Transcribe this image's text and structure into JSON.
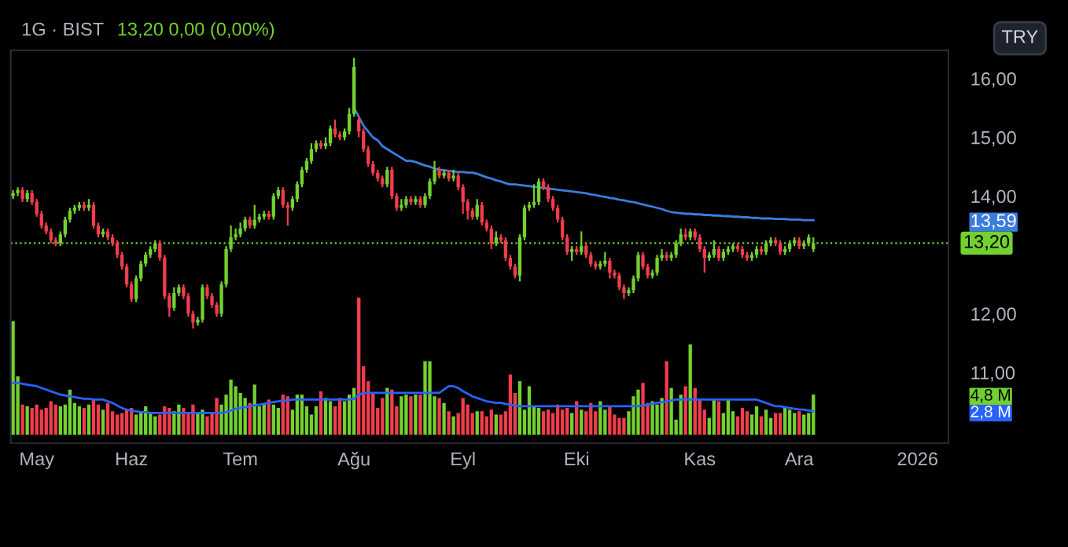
{
  "chart_data": {
    "type": "candlestick",
    "title": "1G · BIST",
    "subtitle": "13,20 0,00 (0,00%)",
    "annotations": [
      "TRY"
    ],
    "categories": [
      null,
      null,
      null,
      null,
      null,
      "May",
      null,
      null,
      null,
      null,
      null,
      null,
      null,
      null,
      null,
      null,
      null,
      null,
      null,
      null,
      null,
      null,
      null,
      null,
      null,
      "Haz",
      null,
      null,
      null,
      null,
      null,
      null,
      null,
      null,
      null,
      null,
      null,
      null,
      null,
      null,
      null,
      null,
      null,
      null,
      null,
      null,
      null,
      null,
      "Tem",
      null,
      null,
      null,
      null,
      null,
      null,
      null,
      null,
      null,
      null,
      null,
      null,
      null,
      null,
      null,
      null,
      null,
      null,
      null,
      null,
      null,
      null,
      null,
      "Ağu",
      null,
      null,
      null,
      null,
      null,
      null,
      null,
      null,
      null,
      null,
      null,
      null,
      null,
      null,
      null,
      null,
      null,
      null,
      null,
      null,
      null,
      null,
      "Eyl",
      null,
      null,
      null,
      null,
      null,
      null,
      null,
      null,
      null,
      null,
      null,
      null,
      null,
      null,
      null,
      null,
      null,
      null,
      null,
      null,
      null,
      null,
      null,
      "Eki",
      null,
      null,
      null,
      null,
      null,
      null,
      null,
      null,
      null,
      null,
      null,
      null,
      null,
      null,
      null,
      null,
      null,
      null,
      null,
      null,
      null,
      null,
      null,
      null,
      null,
      "Kas",
      null,
      null,
      null,
      null,
      null,
      null,
      null,
      null,
      null,
      null,
      null,
      null,
      null,
      null,
      null,
      null,
      null,
      null,
      null,
      null,
      "Ara",
      null,
      null,
      null,
      null,
      null,
      null,
      null,
      null,
      null,
      null,
      null,
      null,
      null,
      null,
      null,
      null,
      null,
      null,
      null,
      null,
      null,
      null,
      null,
      null,
      "2026",
      null,
      null,
      null,
      null,
      null,
      null
    ],
    "ohlc": [
      [
        14.0,
        14.1,
        13.95,
        14.05
      ],
      [
        14.05,
        14.15,
        14.0,
        14.1
      ],
      [
        14.1,
        14.15,
        13.9,
        13.95
      ],
      [
        13.95,
        14.1,
        13.9,
        14.05
      ],
      [
        14.05,
        14.1,
        13.85,
        13.9
      ],
      [
        13.9,
        13.95,
        13.65,
        13.7
      ],
      [
        13.7,
        13.75,
        13.45,
        13.5
      ],
      [
        13.5,
        13.55,
        13.35,
        13.4
      ],
      [
        13.4,
        13.45,
        13.2,
        13.25
      ],
      [
        13.25,
        13.3,
        13.15,
        13.2
      ],
      [
        13.2,
        13.4,
        13.15,
        13.35
      ],
      [
        13.35,
        13.65,
        13.3,
        13.6
      ],
      [
        13.6,
        13.8,
        13.55,
        13.75
      ],
      [
        13.75,
        13.85,
        13.7,
        13.8
      ],
      [
        13.8,
        13.9,
        13.75,
        13.85
      ],
      [
        13.85,
        13.9,
        13.75,
        13.8
      ],
      [
        13.8,
        13.95,
        13.75,
        13.85
      ],
      [
        13.85,
        13.9,
        13.45,
        13.5
      ],
      [
        13.5,
        13.55,
        13.3,
        13.35
      ],
      [
        13.35,
        13.45,
        13.3,
        13.4
      ],
      [
        13.4,
        13.45,
        13.25,
        13.3
      ],
      [
        13.3,
        13.35,
        13.15,
        13.2
      ],
      [
        13.2,
        13.25,
        12.95,
        13.0
      ],
      [
        13.0,
        13.05,
        12.75,
        12.8
      ],
      [
        12.8,
        12.85,
        12.45,
        12.5
      ],
      [
        12.5,
        12.55,
        12.2,
        12.25
      ],
      [
        12.25,
        12.65,
        12.2,
        12.6
      ],
      [
        12.6,
        12.9,
        12.55,
        12.85
      ],
      [
        12.85,
        13.05,
        12.8,
        13.0
      ],
      [
        13.0,
        13.15,
        12.95,
        13.1
      ],
      [
        13.1,
        13.25,
        13.05,
        13.2
      ],
      [
        13.2,
        13.25,
        12.9,
        12.95
      ],
      [
        12.95,
        13.0,
        12.25,
        12.3
      ],
      [
        12.3,
        12.35,
        11.95,
        12.1
      ],
      [
        12.1,
        12.45,
        12.05,
        12.35
      ],
      [
        12.35,
        12.5,
        12.3,
        12.45
      ],
      [
        12.45,
        12.5,
        12.25,
        12.3
      ],
      [
        12.3,
        12.35,
        11.95,
        12.0
      ],
      [
        12.0,
        12.05,
        11.75,
        11.85
      ],
      [
        11.85,
        11.95,
        11.8,
        11.9
      ],
      [
        11.9,
        12.5,
        11.85,
        12.45
      ],
      [
        12.45,
        12.5,
        12.25,
        12.3
      ],
      [
        12.3,
        12.35,
        12.1,
        12.15
      ],
      [
        12.15,
        12.2,
        11.95,
        12.0
      ],
      [
        12.0,
        12.55,
        11.95,
        12.5
      ],
      [
        12.5,
        13.15,
        12.45,
        13.1
      ],
      [
        13.1,
        13.5,
        13.05,
        13.3
      ],
      [
        13.3,
        13.45,
        13.25,
        13.35
      ],
      [
        13.35,
        13.55,
        13.3,
        13.45
      ],
      [
        13.45,
        13.65,
        13.4,
        13.6
      ],
      [
        13.6,
        13.65,
        13.45,
        13.5
      ],
      [
        13.5,
        13.85,
        13.45,
        13.6
      ],
      [
        13.6,
        13.7,
        13.55,
        13.65
      ],
      [
        13.65,
        13.75,
        13.6,
        13.7
      ],
      [
        13.7,
        13.75,
        13.6,
        13.65
      ],
      [
        13.65,
        14.05,
        13.6,
        14.0
      ],
      [
        14.0,
        14.15,
        13.95,
        14.1
      ],
      [
        14.1,
        14.15,
        13.8,
        13.85
      ],
      [
        13.85,
        13.9,
        13.5,
        13.8
      ],
      [
        13.8,
        14.0,
        13.75,
        13.95
      ],
      [
        13.95,
        14.25,
        13.9,
        14.2
      ],
      [
        14.2,
        14.5,
        14.15,
        14.45
      ],
      [
        14.45,
        14.65,
        14.4,
        14.6
      ],
      [
        14.6,
        14.9,
        14.55,
        14.8
      ],
      [
        14.8,
        14.95,
        14.75,
        14.9
      ],
      [
        14.9,
        14.95,
        14.8,
        14.85
      ],
      [
        14.85,
        15.0,
        14.8,
        14.9
      ],
      [
        14.9,
        15.2,
        14.85,
        15.15
      ],
      [
        15.15,
        15.3,
        15.0,
        15.05
      ],
      [
        15.05,
        15.1,
        14.95,
        15.0
      ],
      [
        15.0,
        15.15,
        14.95,
        15.1
      ],
      [
        15.1,
        15.5,
        15.05,
        15.4
      ],
      [
        15.4,
        16.35,
        15.35,
        16.2
      ],
      [
        15.3,
        15.35,
        15.0,
        15.1
      ],
      [
        15.1,
        15.15,
        14.75,
        14.8
      ],
      [
        14.8,
        14.85,
        14.5,
        14.55
      ],
      [
        14.55,
        14.6,
        14.35,
        14.4
      ],
      [
        14.4,
        14.45,
        14.25,
        14.3
      ],
      [
        14.3,
        14.35,
        14.15,
        14.2
      ],
      [
        14.2,
        14.5,
        14.15,
        14.45
      ],
      [
        14.45,
        14.5,
        13.95,
        14.0
      ],
      [
        14.0,
        14.05,
        13.75,
        13.8
      ],
      [
        13.8,
        13.95,
        13.75,
        13.85
      ],
      [
        13.85,
        14.0,
        13.8,
        13.95
      ],
      [
        13.95,
        14.0,
        13.85,
        13.9
      ],
      [
        13.9,
        14.0,
        13.85,
        13.95
      ],
      [
        13.95,
        14.0,
        13.8,
        13.85
      ],
      [
        13.85,
        14.05,
        13.8,
        14.0
      ],
      [
        14.0,
        14.3,
        13.95,
        14.25
      ],
      [
        14.25,
        14.6,
        14.2,
        14.45
      ],
      [
        14.45,
        14.5,
        14.3,
        14.35
      ],
      [
        14.35,
        14.45,
        14.3,
        14.4
      ],
      [
        14.4,
        14.45,
        14.25,
        14.3
      ],
      [
        14.3,
        14.45,
        14.25,
        14.35
      ],
      [
        14.35,
        14.4,
        14.1,
        14.15
      ],
      [
        14.15,
        14.2,
        13.7,
        13.9
      ],
      [
        13.9,
        13.95,
        13.6,
        13.75
      ],
      [
        13.75,
        13.8,
        13.6,
        13.65
      ],
      [
        13.65,
        13.95,
        13.6,
        13.85
      ],
      [
        13.85,
        13.9,
        13.5,
        13.55
      ],
      [
        13.55,
        13.6,
        13.4,
        13.45
      ],
      [
        13.45,
        13.5,
        13.1,
        13.2
      ],
      [
        13.2,
        13.4,
        13.15,
        13.3
      ],
      [
        13.3,
        13.35,
        13.2,
        13.25
      ],
      [
        13.25,
        13.3,
        12.9,
        12.95
      ],
      [
        12.95,
        13.0,
        12.75,
        12.8
      ],
      [
        12.8,
        12.85,
        12.6,
        12.65
      ],
      [
        12.65,
        13.35,
        12.55,
        13.3
      ],
      [
        13.3,
        13.85,
        13.25,
        13.8
      ],
      [
        13.8,
        13.9,
        13.75,
        13.85
      ],
      [
        13.85,
        14.2,
        13.8,
        13.9
      ],
      [
        13.9,
        14.3,
        13.85,
        14.25
      ],
      [
        14.25,
        14.3,
        14.1,
        14.15
      ],
      [
        14.15,
        14.2,
        13.9,
        13.95
      ],
      [
        13.95,
        14.0,
        13.75,
        13.8
      ],
      [
        13.8,
        13.85,
        13.55,
        13.6
      ],
      [
        13.6,
        13.65,
        13.25,
        13.3
      ],
      [
        13.3,
        13.35,
        13.0,
        13.05
      ],
      [
        13.05,
        13.15,
        12.9,
        13.1
      ],
      [
        13.1,
        13.15,
        13.0,
        13.05
      ],
      [
        13.05,
        13.4,
        13.0,
        13.15
      ],
      [
        13.15,
        13.2,
        12.95,
        13.0
      ],
      [
        13.0,
        13.05,
        12.8,
        12.85
      ],
      [
        12.85,
        12.9,
        12.75,
        12.8
      ],
      [
        12.8,
        12.9,
        12.75,
        12.85
      ],
      [
        12.85,
        13.05,
        12.8,
        12.9
      ],
      [
        12.9,
        12.95,
        12.6,
        12.7
      ],
      [
        12.7,
        12.75,
        12.6,
        12.65
      ],
      [
        12.65,
        12.7,
        12.4,
        12.45
      ],
      [
        12.45,
        12.5,
        12.25,
        12.35
      ],
      [
        12.35,
        12.45,
        12.3,
        12.4
      ],
      [
        12.4,
        12.65,
        12.35,
        12.6
      ],
      [
        12.6,
        13.05,
        12.55,
        13.0
      ],
      [
        13.0,
        13.05,
        12.75,
        12.8
      ],
      [
        12.8,
        12.85,
        12.6,
        12.65
      ],
      [
        12.65,
        12.75,
        12.6,
        12.7
      ],
      [
        12.7,
        13.0,
        12.65,
        12.95
      ],
      [
        12.95,
        13.1,
        12.9,
        13.0
      ],
      [
        13.0,
        13.05,
        12.9,
        12.95
      ],
      [
        12.95,
        13.05,
        12.9,
        13.0
      ],
      [
        13.0,
        13.25,
        12.95,
        13.2
      ],
      [
        13.2,
        13.45,
        13.15,
        13.35
      ],
      [
        13.35,
        13.45,
        13.25,
        13.3
      ],
      [
        13.3,
        13.45,
        13.25,
        13.4
      ],
      [
        13.4,
        13.45,
        13.25,
        13.3
      ],
      [
        13.3,
        13.35,
        13.05,
        13.1
      ],
      [
        13.1,
        13.15,
        12.7,
        12.95
      ],
      [
        12.95,
        13.05,
        12.9,
        13.0
      ],
      [
        13.0,
        13.25,
        12.95,
        13.1
      ],
      [
        13.1,
        13.15,
        12.9,
        12.95
      ],
      [
        12.95,
        13.1,
        12.9,
        13.05
      ],
      [
        13.05,
        13.15,
        13.0,
        13.1
      ],
      [
        13.1,
        13.2,
        13.05,
        13.15
      ],
      [
        13.15,
        13.2,
        13.05,
        13.1
      ],
      [
        13.1,
        13.15,
        12.95,
        13.0
      ],
      [
        13.0,
        13.05,
        12.9,
        12.95
      ],
      [
        12.95,
        13.05,
        12.9,
        13.0
      ],
      [
        13.0,
        13.15,
        12.95,
        13.1
      ],
      [
        13.1,
        13.15,
        13.0,
        13.05
      ],
      [
        13.05,
        13.25,
        13.0,
        13.2
      ],
      [
        13.2,
        13.3,
        13.15,
        13.25
      ],
      [
        13.25,
        13.3,
        13.15,
        13.2
      ],
      [
        13.2,
        13.25,
        13.0,
        13.05
      ],
      [
        13.05,
        13.15,
        13.0,
        13.1
      ],
      [
        13.1,
        13.25,
        13.05,
        13.2
      ],
      [
        13.2,
        13.3,
        13.15,
        13.25
      ],
      [
        13.25,
        13.3,
        13.1,
        13.15
      ],
      [
        13.15,
        13.25,
        13.1,
        13.2
      ],
      [
        13.2,
        13.35,
        13.15,
        13.3
      ],
      [
        13.1,
        13.3,
        13.05,
        13.2
      ],
      null,
      null,
      null,
      null,
      null,
      null,
      null,
      null,
      null,
      null,
      null,
      null,
      null,
      null,
      null,
      null,
      null,
      null,
      null,
      null,
      null,
      null,
      null,
      null,
      null,
      null,
      null,
      null
    ],
    "colors": [
      "#73d12f",
      "#73d12f",
      "#f23c4d",
      "#73d12f",
      "#f23c4d",
      "#f23c4d",
      "#f23c4d",
      "#f23c4d",
      "#f23c4d",
      "#f23c4d",
      "#73d12f",
      "#73d12f",
      "#73d12f",
      "#73d12f",
      "#73d12f",
      "#f23c4d",
      "#73d12f",
      "#f23c4d",
      "#f23c4d",
      "#73d12f",
      "#f23c4d",
      "#f23c4d",
      "#f23c4d",
      "#f23c4d",
      "#f23c4d",
      "#f23c4d",
      "#73d12f",
      "#73d12f",
      "#73d12f",
      "#73d12f",
      "#73d12f",
      "#f23c4d",
      "#f23c4d",
      "#f23c4d",
      "#73d12f",
      "#73d12f",
      "#f23c4d",
      "#f23c4d",
      "#f23c4d",
      "#73d12f",
      "#73d12f",
      "#f23c4d",
      "#f23c4d",
      "#f23c4d",
      "#73d12f",
      "#73d12f",
      "#73d12f",
      "#73d12f",
      "#73d12f",
      "#73d12f",
      "#f23c4d",
      "#73d12f",
      "#73d12f",
      "#73d12f",
      "#f23c4d",
      "#73d12f",
      "#73d12f",
      "#f23c4d",
      "#f23c4d",
      "#73d12f",
      "#73d12f",
      "#73d12f",
      "#73d12f",
      "#73d12f",
      "#73d12f",
      "#f23c4d",
      "#73d12f",
      "#73d12f",
      "#f23c4d",
      "#f23c4d",
      "#73d12f",
      "#73d12f",
      "#73d12f",
      "#f23c4d",
      "#f23c4d",
      "#f23c4d",
      "#f23c4d",
      "#f23c4d",
      "#f23c4d",
      "#73d12f",
      "#f23c4d",
      "#f23c4d",
      "#73d12f",
      "#73d12f",
      "#f23c4d",
      "#73d12f",
      "#f23c4d",
      "#73d12f",
      "#73d12f",
      "#73d12f",
      "#f23c4d",
      "#73d12f",
      "#f23c4d",
      "#73d12f",
      "#f23c4d",
      "#f23c4d",
      "#f23c4d",
      "#f23c4d",
      "#73d12f",
      "#f23c4d",
      "#f23c4d",
      "#f23c4d",
      "#73d12f",
      "#f23c4d",
      "#f23c4d",
      "#f23c4d",
      "#f23c4d",
      "#73d12f",
      "#73d12f",
      "#73d12f",
      "#73d12f",
      "#73d12f",
      "#f23c4d",
      "#f23c4d",
      "#f23c4d",
      "#f23c4d",
      "#f23c4d",
      "#f23c4d",
      "#73d12f",
      "#f23c4d",
      "#73d12f",
      "#f23c4d",
      "#f23c4d",
      "#f23c4d",
      "#73d12f",
      "#73d12f",
      "#f23c4d",
      "#f23c4d",
      "#f23c4d",
      "#f23c4d",
      "#73d12f",
      "#73d12f",
      "#73d12f",
      "#f23c4d",
      "#f23c4d",
      "#73d12f",
      "#73d12f",
      "#73d12f",
      "#f23c4d",
      "#73d12f",
      "#73d12f",
      "#73d12f",
      "#f23c4d",
      "#73d12f",
      "#f23c4d",
      "#f23c4d",
      "#f23c4d",
      "#73d12f",
      "#73d12f",
      "#f23c4d",
      "#73d12f",
      "#73d12f",
      "#73d12f",
      "#f23c4d",
      "#f23c4d",
      "#f23c4d",
      "#73d12f",
      "#73d12f",
      "#f23c4d",
      "#73d12f",
      "#73d12f",
      "#f23c4d",
      "#f23c4d",
      "#73d12f",
      "#73d12f",
      "#73d12f",
      "#f23c4d",
      "#73d12f",
      "#73d12f",
      "#73d12f",
      null,
      null,
      null,
      null,
      null,
      null,
      null,
      null,
      null,
      null,
      null,
      null,
      null,
      null,
      null,
      null,
      null,
      null,
      null,
      null,
      null,
      null,
      null,
      null,
      null,
      null,
      null,
      null
    ],
    "series": [
      {
        "type": "bar",
        "axis": "y2",
        "colors": [
          "#73d12f",
          "#73d12f",
          "#f23c4d",
          "#73d12f",
          "#f23c4d",
          "#f23c4d",
          "#f23c4d",
          "#f23c4d",
          "#f23c4d",
          "#f23c4d",
          "#73d12f",
          "#73d12f",
          "#73d12f",
          "#73d12f",
          "#73d12f",
          "#f23c4d",
          "#73d12f",
          "#f23c4d",
          "#f23c4d",
          "#73d12f",
          "#f23c4d",
          "#f23c4d",
          "#f23c4d",
          "#f23c4d",
          "#f23c4d",
          "#f23c4d",
          "#73d12f",
          "#73d12f",
          "#73d12f",
          "#73d12f",
          "#73d12f",
          "#f23c4d",
          "#f23c4d",
          "#f23c4d",
          "#73d12f",
          "#73d12f",
          "#f23c4d",
          "#f23c4d",
          "#f23c4d",
          "#73d12f",
          "#73d12f",
          "#f23c4d",
          "#f23c4d",
          "#f23c4d",
          "#73d12f",
          "#73d12f",
          "#73d12f",
          "#73d12f",
          "#73d12f",
          "#73d12f",
          "#f23c4d",
          "#73d12f",
          "#73d12f",
          "#73d12f",
          "#f23c4d",
          "#73d12f",
          "#73d12f",
          "#f23c4d",
          "#f23c4d",
          "#73d12f",
          "#73d12f",
          "#73d12f",
          "#73d12f",
          "#73d12f",
          "#73d12f",
          "#f23c4d",
          "#73d12f",
          "#73d12f",
          "#f23c4d",
          "#f23c4d",
          "#73d12f",
          "#73d12f",
          "#73d12f",
          "#f23c4d",
          "#f23c4d",
          "#f23c4d",
          "#f23c4d",
          "#f23c4d",
          "#f23c4d",
          "#73d12f",
          "#f23c4d",
          "#f23c4d",
          "#73d12f",
          "#73d12f",
          "#f23c4d",
          "#73d12f",
          "#f23c4d",
          "#73d12f",
          "#73d12f",
          "#73d12f",
          "#f23c4d",
          "#73d12f",
          "#f23c4d",
          "#73d12f",
          "#f23c4d",
          "#f23c4d",
          "#f23c4d",
          "#f23c4d",
          "#73d12f",
          "#f23c4d",
          "#f23c4d",
          "#f23c4d",
          "#73d12f",
          "#f23c4d",
          "#f23c4d",
          "#f23c4d",
          "#f23c4d",
          "#73d12f",
          "#73d12f",
          "#73d12f",
          "#73d12f",
          "#73d12f",
          "#f23c4d",
          "#f23c4d",
          "#f23c4d",
          "#f23c4d",
          "#f23c4d",
          "#f23c4d",
          "#73d12f",
          "#f23c4d",
          "#73d12f",
          "#f23c4d",
          "#f23c4d",
          "#f23c4d",
          "#73d12f",
          "#73d12f",
          "#f23c4d",
          "#f23c4d",
          "#f23c4d",
          "#f23c4d",
          "#73d12f",
          "#73d12f",
          "#73d12f",
          "#f23c4d",
          "#f23c4d",
          "#73d12f",
          "#73d12f",
          "#73d12f",
          "#f23c4d",
          "#73d12f",
          "#73d12f",
          "#73d12f",
          "#f23c4d",
          "#73d12f",
          "#f23c4d",
          "#f23c4d",
          "#f23c4d",
          "#73d12f",
          "#73d12f",
          "#f23c4d",
          "#73d12f",
          "#73d12f",
          "#73d12f",
          "#f23c4d",
          "#f23c4d",
          "#f23c4d",
          "#73d12f",
          "#73d12f",
          "#f23c4d",
          "#73d12f",
          "#73d12f",
          "#f23c4d",
          "#f23c4d",
          "#73d12f",
          "#73d12f",
          "#73d12f",
          "#f23c4d",
          "#73d12f",
          "#73d12f",
          "#73d12f",
          null,
          null,
          null,
          null,
          null,
          null,
          null,
          null,
          null,
          null,
          null,
          null,
          null,
          null,
          null,
          null,
          null,
          null,
          null,
          null,
          null,
          null,
          null,
          null,
          null,
          null,
          null,
          null
        ],
        "values": [
          13.6,
          7.0,
          3.6,
          3.4,
          3.2,
          3.6,
          3.0,
          3.2,
          4.0,
          3.6,
          3.4,
          3.6,
          5.4,
          3.8,
          3.4,
          3.2,
          3.6,
          4.2,
          3.6,
          3.0,
          3.8,
          2.8,
          2.4,
          2.6,
          3.0,
          3.2,
          2.4,
          2.8,
          3.4,
          2.6,
          2.2,
          2.4,
          3.4,
          3.2,
          2.8,
          3.6,
          3.2,
          2.6,
          3.6,
          2.6,
          3.0,
          2.2,
          2.6,
          4.4,
          3.6,
          4.8,
          6.6,
          5.8,
          5.0,
          4.4,
          3.8,
          6.0,
          3.4,
          3.6,
          4.2,
          3.6,
          3.2,
          4.8,
          4.6,
          3.0,
          4.8,
          4.8,
          3.4,
          2.4,
          3.4,
          5.2,
          4.4,
          4.0,
          3.4,
          4.4,
          4.0,
          4.8,
          5.6,
          16.4,
          8.2,
          6.4,
          5.0,
          3.2,
          4.4,
          5.6,
          5.4,
          3.4,
          4.6,
          4.8,
          4.6,
          4.8,
          4.8,
          8.8,
          8.8,
          4.6,
          4.4,
          3.8,
          2.8,
          2.2,
          2.6,
          4.4,
          3.6,
          2.6,
          2.8,
          2.8,
          2.2,
          3.0,
          2.4,
          2.4,
          2.8,
          7.2,
          5.0,
          6.4,
          3.0,
          5.8,
          3.4,
          3.2,
          2.8,
          3.0,
          2.6,
          3.6,
          3.0,
          3.2,
          2.6,
          4.0,
          3.0,
          2.8,
          3.8,
          2.8,
          4.0,
          3.0,
          3.4,
          2.4,
          2.0,
          2.0,
          2.8,
          4.6,
          5.4,
          6.2,
          3.8,
          4.0,
          3.6,
          4.4,
          8.8,
          5.6,
          1.8,
          4.8,
          5.8,
          10.8,
          5.6,
          4.2,
          3.0,
          2.0,
          4.2,
          4.0,
          2.6,
          4.2,
          2.8,
          2.2,
          3.2,
          2.8,
          2.4,
          3.4,
          2.2,
          3.0,
          2.0,
          2.6,
          2.6,
          3.4,
          3.0,
          2.6,
          2.8,
          2.4,
          2.6,
          4.8,
          null,
          null,
          null,
          null,
          null,
          null,
          null,
          null,
          null,
          null,
          null,
          null,
          null,
          null,
          null,
          null,
          null,
          null,
          null,
          null,
          null,
          null,
          null,
          null,
          null,
          null,
          null,
          null
        ]
      },
      {
        "type": "line",
        "axis": "y",
        "color": "#3b7ddd",
        "values": [
          null,
          null,
          null,
          null,
          null,
          null,
          null,
          null,
          null,
          null,
          null,
          null,
          null,
          null,
          null,
          null,
          null,
          null,
          null,
          null,
          null,
          null,
          null,
          null,
          null,
          null,
          null,
          null,
          null,
          null,
          null,
          null,
          null,
          null,
          null,
          null,
          null,
          null,
          null,
          null,
          null,
          null,
          null,
          null,
          null,
          null,
          null,
          null,
          null,
          null,
          null,
          null,
          null,
          null,
          null,
          null,
          null,
          null,
          null,
          null,
          null,
          null,
          null,
          null,
          null,
          null,
          null,
          null,
          null,
          null,
          null,
          null,
          15.5,
          15.35,
          15.2,
          15.1,
          15.0,
          14.95,
          14.85,
          14.8,
          14.75,
          14.7,
          14.65,
          14.6,
          14.6,
          14.58,
          14.55,
          14.52,
          14.5,
          14.47,
          14.45,
          14.44,
          14.43,
          14.42,
          14.41,
          14.41,
          14.4,
          14.4,
          14.38,
          14.35,
          14.32,
          14.3,
          14.27,
          14.25,
          14.22,
          14.2,
          14.2,
          14.19,
          14.18,
          14.17,
          14.16,
          14.15,
          14.14,
          14.13,
          14.12,
          14.11,
          14.1,
          14.09,
          14.08,
          14.07,
          14.06,
          14.05,
          14.03,
          14.02,
          14.0,
          13.99,
          13.97,
          13.96,
          13.94,
          13.93,
          13.91,
          13.9,
          13.88,
          13.86,
          13.84,
          13.82,
          13.8,
          13.78,
          13.75,
          13.73,
          13.72,
          13.71,
          13.7,
          13.7,
          13.69,
          13.69,
          13.68,
          13.68,
          13.67,
          13.67,
          13.66,
          13.66,
          13.65,
          13.65,
          13.64,
          13.64,
          13.63,
          13.63,
          13.62,
          13.62,
          13.62,
          13.61,
          13.61,
          13.61,
          13.6,
          13.6,
          13.6,
          13.59,
          13.59,
          13.59,
          null,
          null,
          null,
          null,
          null,
          null,
          null,
          null,
          null,
          null,
          null,
          null,
          null,
          null,
          null,
          null,
          null,
          null,
          null,
          null,
          null,
          null,
          null,
          null,
          null,
          null,
          null,
          null
        ]
      },
      {
        "type": "line",
        "axis": "y2",
        "color": "#2962ff",
        "values": [
          6.2,
          6.2,
          6.1,
          6.0,
          5.9,
          5.8,
          5.6,
          5.4,
          5.2,
          5.0,
          4.8,
          4.7,
          4.6,
          4.5,
          4.4,
          4.3,
          4.3,
          4.2,
          4.2,
          4.2,
          4.0,
          3.8,
          3.5,
          3.2,
          3.0,
          2.9,
          2.8,
          2.7,
          2.7,
          2.6,
          2.6,
          2.6,
          2.6,
          2.6,
          2.6,
          2.6,
          2.6,
          2.6,
          2.6,
          2.6,
          2.6,
          2.6,
          2.6,
          2.6,
          2.6,
          2.7,
          2.9,
          3.1,
          3.2,
          3.3,
          3.4,
          3.5,
          3.6,
          3.7,
          3.8,
          3.9,
          4.0,
          4.1,
          4.1,
          4.2,
          4.2,
          4.2,
          4.2,
          4.2,
          4.2,
          4.2,
          4.2,
          4.2,
          4.2,
          4.2,
          4.2,
          4.2,
          4.3,
          4.8,
          5.0,
          5.0,
          5.0,
          5.0,
          5.0,
          5.0,
          5.0,
          5.0,
          5.0,
          5.0,
          5.0,
          5.0,
          5.0,
          5.0,
          5.0,
          5.0,
          5.0,
          5.4,
          5.8,
          5.8,
          5.6,
          5.2,
          4.9,
          4.6,
          4.4,
          4.2,
          4.0,
          3.9,
          3.8,
          3.8,
          3.7,
          3.6,
          3.5,
          3.4,
          3.4,
          3.4,
          3.4,
          3.4,
          3.4,
          3.4,
          3.4,
          3.4,
          3.4,
          3.4,
          3.4,
          3.4,
          3.4,
          3.4,
          3.4,
          3.4,
          3.4,
          3.4,
          3.4,
          3.4,
          3.4,
          3.4,
          3.4,
          3.4,
          3.4,
          3.5,
          3.6,
          3.7,
          3.8,
          3.9,
          4.0,
          4.1,
          4.2,
          4.2,
          4.2,
          4.2,
          4.2,
          4.2,
          4.2,
          4.2,
          4.2,
          4.2,
          4.2,
          4.2,
          4.2,
          4.2,
          4.2,
          4.2,
          4.2,
          4.2,
          4.0,
          3.8,
          3.6,
          3.4,
          3.4,
          3.3,
          3.2,
          3.1,
          3.0,
          3.0,
          2.9,
          2.8,
          null,
          null,
          null,
          null,
          null,
          null,
          null,
          null,
          null,
          null,
          null,
          null,
          null,
          null,
          null,
          null,
          null,
          null,
          null,
          null,
          null,
          null,
          null,
          null,
          null,
          null,
          null,
          null
        ]
      }
    ],
    "ylim": [
      9.8,
      16.48
    ],
    "yticks": [
      {
        "value": 11,
        "label": "11,00"
      },
      {
        "value": 12,
        "label": "12,00"
      },
      {
        "value": 13.59,
        "label": "13,59"
      },
      {
        "value": 14,
        "label": "14,00"
      },
      {
        "value": 15,
        "label": "15,00"
      },
      {
        "value": 16,
        "label": "16,00"
      }
    ],
    "y2lim": [
      -1.0,
      46
    ],
    "y2ticks": [
      {
        "value": 2.8,
        "label": "2,8 M"
      },
      {
        "value": 4.8,
        "label": "4,8 M"
      }
    ],
    "ref_lines": [
      {
        "axis": "y",
        "value": 13.2,
        "label": "13,20",
        "color": "#73d12f",
        "line_style": "dotted"
      }
    ]
  }
}
